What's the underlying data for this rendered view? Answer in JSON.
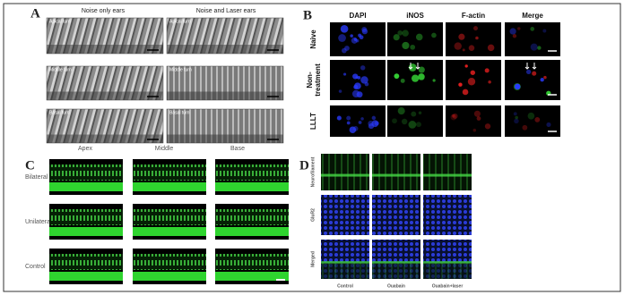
{
  "panel_a": {
    "label": "A",
    "columns": [
      "Noise only ears",
      "Noise and Laser ears"
    ],
    "rows": [
      "Apical turn",
      "Middle turn",
      "Basal turn"
    ],
    "positions": [
      "Apex",
      "Middle",
      "Base"
    ]
  },
  "panel_b": {
    "label": "B",
    "columns": [
      "DAPI",
      "iNOS",
      "F-actin",
      "Merge"
    ],
    "rows": [
      [
        "Naive"
      ],
      [
        "Non-",
        "treatment"
      ],
      [
        "LLLT"
      ]
    ]
  },
  "panel_c": {
    "label": "C",
    "rows": [
      "Bilateral",
      "Unilateral",
      "Control"
    ]
  },
  "panel_d": {
    "label": "D",
    "rows": [
      "Neurofilament",
      "GluR2",
      "Merged"
    ],
    "columns": [
      "Control",
      "Ouabain",
      "Ouabain+laser"
    ]
  }
}
